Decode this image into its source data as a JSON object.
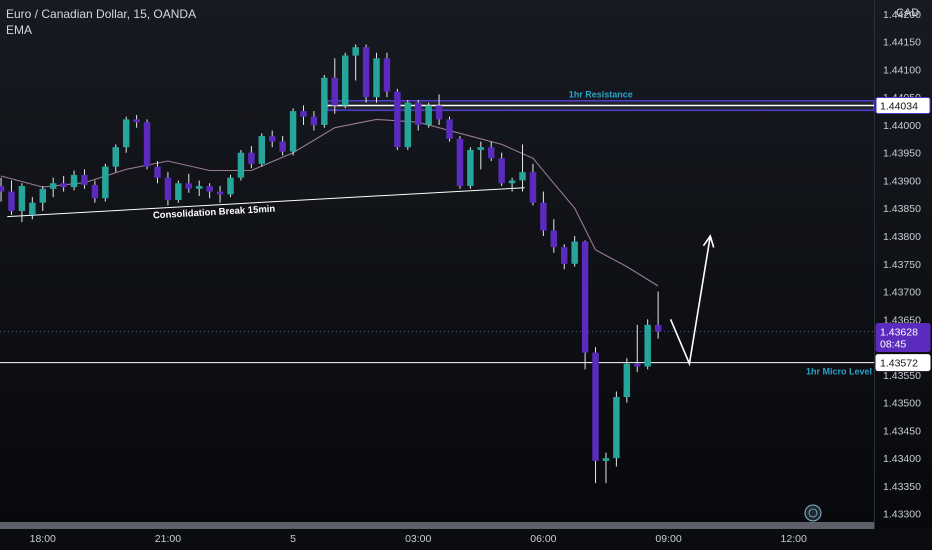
{
  "header": {
    "title": "Euro / Canadian Dollar, 15, OANDA",
    "indicator": "EMA",
    "currency": "CAD"
  },
  "colors": {
    "bull": "#26a69a",
    "bear": "#5b2bbd",
    "ema": "#9b7a93",
    "resistance_zone": "#4c3cc8",
    "label_text": "#2aa3c9",
    "white": "#ffffff",
    "axis_text": "#c9ccd2"
  },
  "chart_data": {
    "type": "candlestick",
    "timeframe": "15",
    "ylim": [
      1.43285,
      1.44225
    ],
    "y_ticks": [
      "1.44200",
      "1.44150",
      "1.44100",
      "1.44050",
      "1.44000",
      "1.43950",
      "1.43900",
      "1.43850",
      "1.43800",
      "1.43750",
      "1.43700",
      "1.43650",
      "1.43550",
      "1.43500",
      "1.43450",
      "1.43400",
      "1.43350",
      "1.43300"
    ],
    "x_ticks": [
      {
        "label": "18:00",
        "t": 0
      },
      {
        "label": "21:00",
        "t": 12
      },
      {
        "label": "5",
        "t": 24
      },
      {
        "label": "03:00",
        "t": 36
      },
      {
        "label": "06:00",
        "t": 48
      },
      {
        "label": "09:00",
        "t": 60
      },
      {
        "label": "12:00",
        "t": 72
      }
    ],
    "t_range": [
      -4.1,
      79.7
    ],
    "candles": [
      {
        "t": -4,
        "o": 1.4389,
        "h": 1.43905,
        "l": 1.43862,
        "c": 1.4388
      },
      {
        "t": -3,
        "o": 1.4388,
        "h": 1.439,
        "l": 1.43838,
        "c": 1.43845
      },
      {
        "t": -2,
        "o": 1.43845,
        "h": 1.43895,
        "l": 1.43825,
        "c": 1.4389
      },
      {
        "t": -1,
        "o": 1.43838,
        "h": 1.4387,
        "l": 1.4383,
        "c": 1.4386
      },
      {
        "t": 0,
        "o": 1.4386,
        "h": 1.4389,
        "l": 1.43845,
        "c": 1.43885
      },
      {
        "t": 1,
        "o": 1.43885,
        "h": 1.43905,
        "l": 1.4387,
        "c": 1.43895
      },
      {
        "t": 2,
        "o": 1.43895,
        "h": 1.43908,
        "l": 1.4388,
        "c": 1.43888
      },
      {
        "t": 3,
        "o": 1.43888,
        "h": 1.43918,
        "l": 1.43882,
        "c": 1.4391
      },
      {
        "t": 4,
        "o": 1.4391,
        "h": 1.4392,
        "l": 1.43885,
        "c": 1.43892
      },
      {
        "t": 5,
        "o": 1.43892,
        "h": 1.439,
        "l": 1.4386,
        "c": 1.43868
      },
      {
        "t": 6,
        "o": 1.43868,
        "h": 1.4393,
        "l": 1.43862,
        "c": 1.43925
      },
      {
        "t": 7,
        "o": 1.43925,
        "h": 1.43965,
        "l": 1.43915,
        "c": 1.4396
      },
      {
        "t": 8,
        "o": 1.4396,
        "h": 1.44015,
        "l": 1.4395,
        "c": 1.4401
      },
      {
        "t": 9,
        "o": 1.4401,
        "h": 1.44018,
        "l": 1.43995,
        "c": 1.44005
      },
      {
        "t": 10,
        "o": 1.44005,
        "h": 1.4401,
        "l": 1.4392,
        "c": 1.43925
      },
      {
        "t": 11,
        "o": 1.43925,
        "h": 1.43935,
        "l": 1.43895,
        "c": 1.43905
      },
      {
        "t": 12,
        "o": 1.43905,
        "h": 1.43915,
        "l": 1.43855,
        "c": 1.43865
      },
      {
        "t": 13,
        "o": 1.43865,
        "h": 1.439,
        "l": 1.4386,
        "c": 1.43895
      },
      {
        "t": 14,
        "o": 1.43895,
        "h": 1.43912,
        "l": 1.43878,
        "c": 1.43885
      },
      {
        "t": 15,
        "o": 1.43885,
        "h": 1.439,
        "l": 1.43872,
        "c": 1.4389
      },
      {
        "t": 16,
        "o": 1.4389,
        "h": 1.43895,
        "l": 1.43868,
        "c": 1.4388
      },
      {
        "t": 17,
        "o": 1.4388,
        "h": 1.4389,
        "l": 1.4386,
        "c": 1.43875
      },
      {
        "t": 18,
        "o": 1.43875,
        "h": 1.4391,
        "l": 1.4387,
        "c": 1.43905
      },
      {
        "t": 19,
        "o": 1.43905,
        "h": 1.43955,
        "l": 1.439,
        "c": 1.4395
      },
      {
        "t": 20,
        "o": 1.4395,
        "h": 1.43962,
        "l": 1.43922,
        "c": 1.4393
      },
      {
        "t": 21,
        "o": 1.4393,
        "h": 1.43985,
        "l": 1.43925,
        "c": 1.4398
      },
      {
        "t": 22,
        "o": 1.4398,
        "h": 1.4399,
        "l": 1.4396,
        "c": 1.4397
      },
      {
        "t": 23,
        "o": 1.4397,
        "h": 1.4398,
        "l": 1.43945,
        "c": 1.43952
      },
      {
        "t": 24,
        "o": 1.43952,
        "h": 1.4403,
        "l": 1.43945,
        "c": 1.44025
      },
      {
        "t": 25,
        "o": 1.44025,
        "h": 1.44035,
        "l": 1.44,
        "c": 1.44015
      },
      {
        "t": 26,
        "o": 1.44015,
        "h": 1.44025,
        "l": 1.4399,
        "c": 1.44
      },
      {
        "t": 27,
        "o": 1.44,
        "h": 1.4409,
        "l": 1.43995,
        "c": 1.44085
      },
      {
        "t": 28,
        "o": 1.44085,
        "h": 1.4412,
        "l": 1.4402,
        "c": 1.44035
      },
      {
        "t": 29,
        "o": 1.44035,
        "h": 1.4413,
        "l": 1.4403,
        "c": 1.44125
      },
      {
        "t": 30,
        "o": 1.44125,
        "h": 1.44145,
        "l": 1.4408,
        "c": 1.4414
      },
      {
        "t": 31,
        "o": 1.4414,
        "h": 1.44145,
        "l": 1.4404,
        "c": 1.4405
      },
      {
        "t": 32,
        "o": 1.4405,
        "h": 1.4413,
        "l": 1.4404,
        "c": 1.4412
      },
      {
        "t": 33,
        "o": 1.4412,
        "h": 1.4413,
        "l": 1.4405,
        "c": 1.4406
      },
      {
        "t": 34,
        "o": 1.4406,
        "h": 1.44065,
        "l": 1.43955,
        "c": 1.4396
      },
      {
        "t": 35,
        "o": 1.4396,
        "h": 1.44045,
        "l": 1.43955,
        "c": 1.4404
      },
      {
        "t": 36,
        "o": 1.4404,
        "h": 1.44045,
        "l": 1.4399,
        "c": 1.44
      },
      {
        "t": 37,
        "o": 1.44,
        "h": 1.4404,
        "l": 1.43995,
        "c": 1.44035
      },
      {
        "t": 38,
        "o": 1.44035,
        "h": 1.44055,
        "l": 1.44,
        "c": 1.4401
      },
      {
        "t": 39,
        "o": 1.4401,
        "h": 1.44015,
        "l": 1.4397,
        "c": 1.43975
      },
      {
        "t": 40,
        "o": 1.43975,
        "h": 1.4398,
        "l": 1.43885,
        "c": 1.4389
      },
      {
        "t": 41,
        "o": 1.4389,
        "h": 1.4396,
        "l": 1.43885,
        "c": 1.43955
      },
      {
        "t": 42,
        "o": 1.43955,
        "h": 1.4397,
        "l": 1.4392,
        "c": 1.4396
      },
      {
        "t": 43,
        "o": 1.4396,
        "h": 1.4397,
        "l": 1.43935,
        "c": 1.4394
      },
      {
        "t": 44,
        "o": 1.4394,
        "h": 1.4395,
        "l": 1.4389,
        "c": 1.43895
      },
      {
        "t": 45,
        "o": 1.43895,
        "h": 1.43905,
        "l": 1.4388,
        "c": 1.439
      },
      {
        "t": 46,
        "o": 1.439,
        "h": 1.43965,
        "l": 1.4388,
        "c": 1.43915
      },
      {
        "t": 47,
        "o": 1.43915,
        "h": 1.4393,
        "l": 1.43855,
        "c": 1.4386
      },
      {
        "t": 48,
        "o": 1.4386,
        "h": 1.4388,
        "l": 1.438,
        "c": 1.4381
      },
      {
        "t": 49,
        "o": 1.4381,
        "h": 1.4383,
        "l": 1.4377,
        "c": 1.4378
      },
      {
        "t": 50,
        "o": 1.4378,
        "h": 1.43785,
        "l": 1.4374,
        "c": 1.4375
      },
      {
        "t": 51,
        "o": 1.4375,
        "h": 1.438,
        "l": 1.43745,
        "c": 1.4379
      },
      {
        "t": 52,
        "o": 1.4379,
        "h": 1.43792,
        "l": 1.4356,
        "c": 1.4359
      },
      {
        "t": 53,
        "o": 1.4359,
        "h": 1.436,
        "l": 1.43355,
        "c": 1.43395
      },
      {
        "t": 54,
        "o": 1.43395,
        "h": 1.4341,
        "l": 1.43355,
        "c": 1.434
      },
      {
        "t": 55,
        "o": 1.434,
        "h": 1.4352,
        "l": 1.43385,
        "c": 1.4351
      },
      {
        "t": 56,
        "o": 1.4351,
        "h": 1.4358,
        "l": 1.435,
        "c": 1.4357
      },
      {
        "t": 57,
        "o": 1.4357,
        "h": 1.4364,
        "l": 1.43555,
        "c": 1.43565
      },
      {
        "t": 58,
        "o": 1.43565,
        "h": 1.4365,
        "l": 1.4356,
        "c": 1.4364
      },
      {
        "t": 59,
        "o": 1.4364,
        "h": 1.437,
        "l": 1.43615,
        "c": 1.43628
      }
    ],
    "ema": [
      [
        -4,
        1.43908
      ],
      [
        0,
        1.43888
      ],
      [
        4,
        1.43896
      ],
      [
        8,
        1.4392
      ],
      [
        12,
        1.43935
      ],
      [
        16,
        1.43918
      ],
      [
        20,
        1.43918
      ],
      [
        24,
        1.4395
      ],
      [
        28,
        1.43995
      ],
      [
        32,
        1.4401
      ],
      [
        36,
        1.44005
      ],
      [
        40,
        1.43985
      ],
      [
        44,
        1.43965
      ],
      [
        47,
        1.4394
      ],
      [
        49,
        1.43895
      ],
      [
        51,
        1.4385
      ],
      [
        53,
        1.43775
      ],
      [
        56,
        1.43745
      ],
      [
        59,
        1.4371
      ]
    ],
    "annotations": {
      "resistance": {
        "label": "1hr Resistance",
        "price_top": 1.4404,
        "price_bottom": 1.4403,
        "price_label": "1.44034",
        "t_start": 27.3
      },
      "micro_level": {
        "label": "1hr Micro Level",
        "price": 1.43572,
        "price_label": "1.43572"
      },
      "consolidation": {
        "label": "Consolidation Break 15min",
        "t1": -3.4,
        "p1": 1.43835,
        "t2": 46.2,
        "p2": 1.43887
      },
      "projection": [
        [
          60.2,
          1.4365
        ],
        [
          62.0,
          1.4357
        ],
        [
          64.0,
          1.438
        ]
      ],
      "current_price": {
        "price": 1.43628,
        "label": "1.43628",
        "countdown": "08:45"
      }
    }
  }
}
